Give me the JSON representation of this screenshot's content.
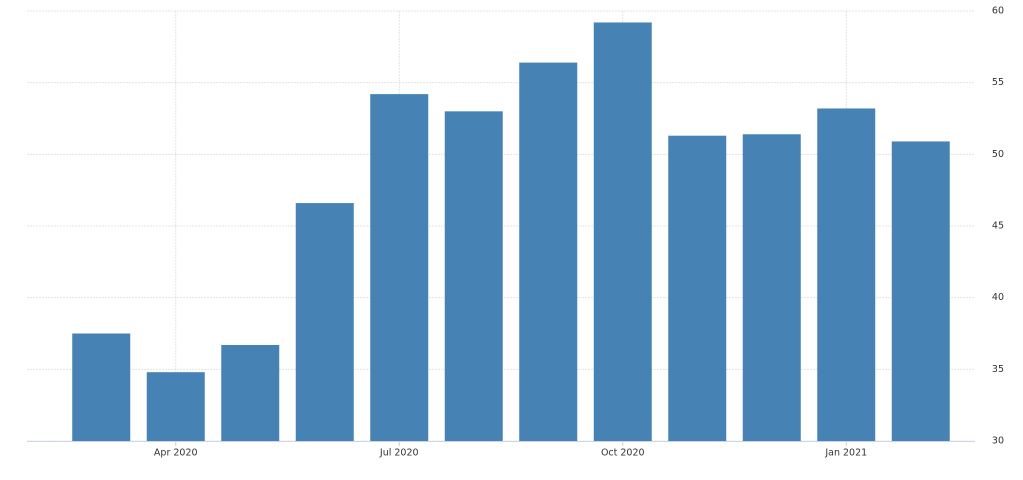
{
  "chart_data": {
    "type": "bar",
    "categories": [
      null,
      "Apr 2020",
      null,
      null,
      "Jul 2020",
      null,
      null,
      "Oct 2020",
      null,
      null,
      "Jan 2021",
      null
    ],
    "values": [
      37.5,
      34.8,
      36.7,
      46.6,
      54.2,
      53.0,
      56.4,
      59.2,
      51.3,
      51.4,
      53.2,
      50.9
    ],
    "color": "#4682b4",
    "ylim": [
      30,
      60
    ],
    "yticks": [
      30,
      35,
      40,
      45,
      50,
      55,
      60
    ],
    "grid": true
  }
}
